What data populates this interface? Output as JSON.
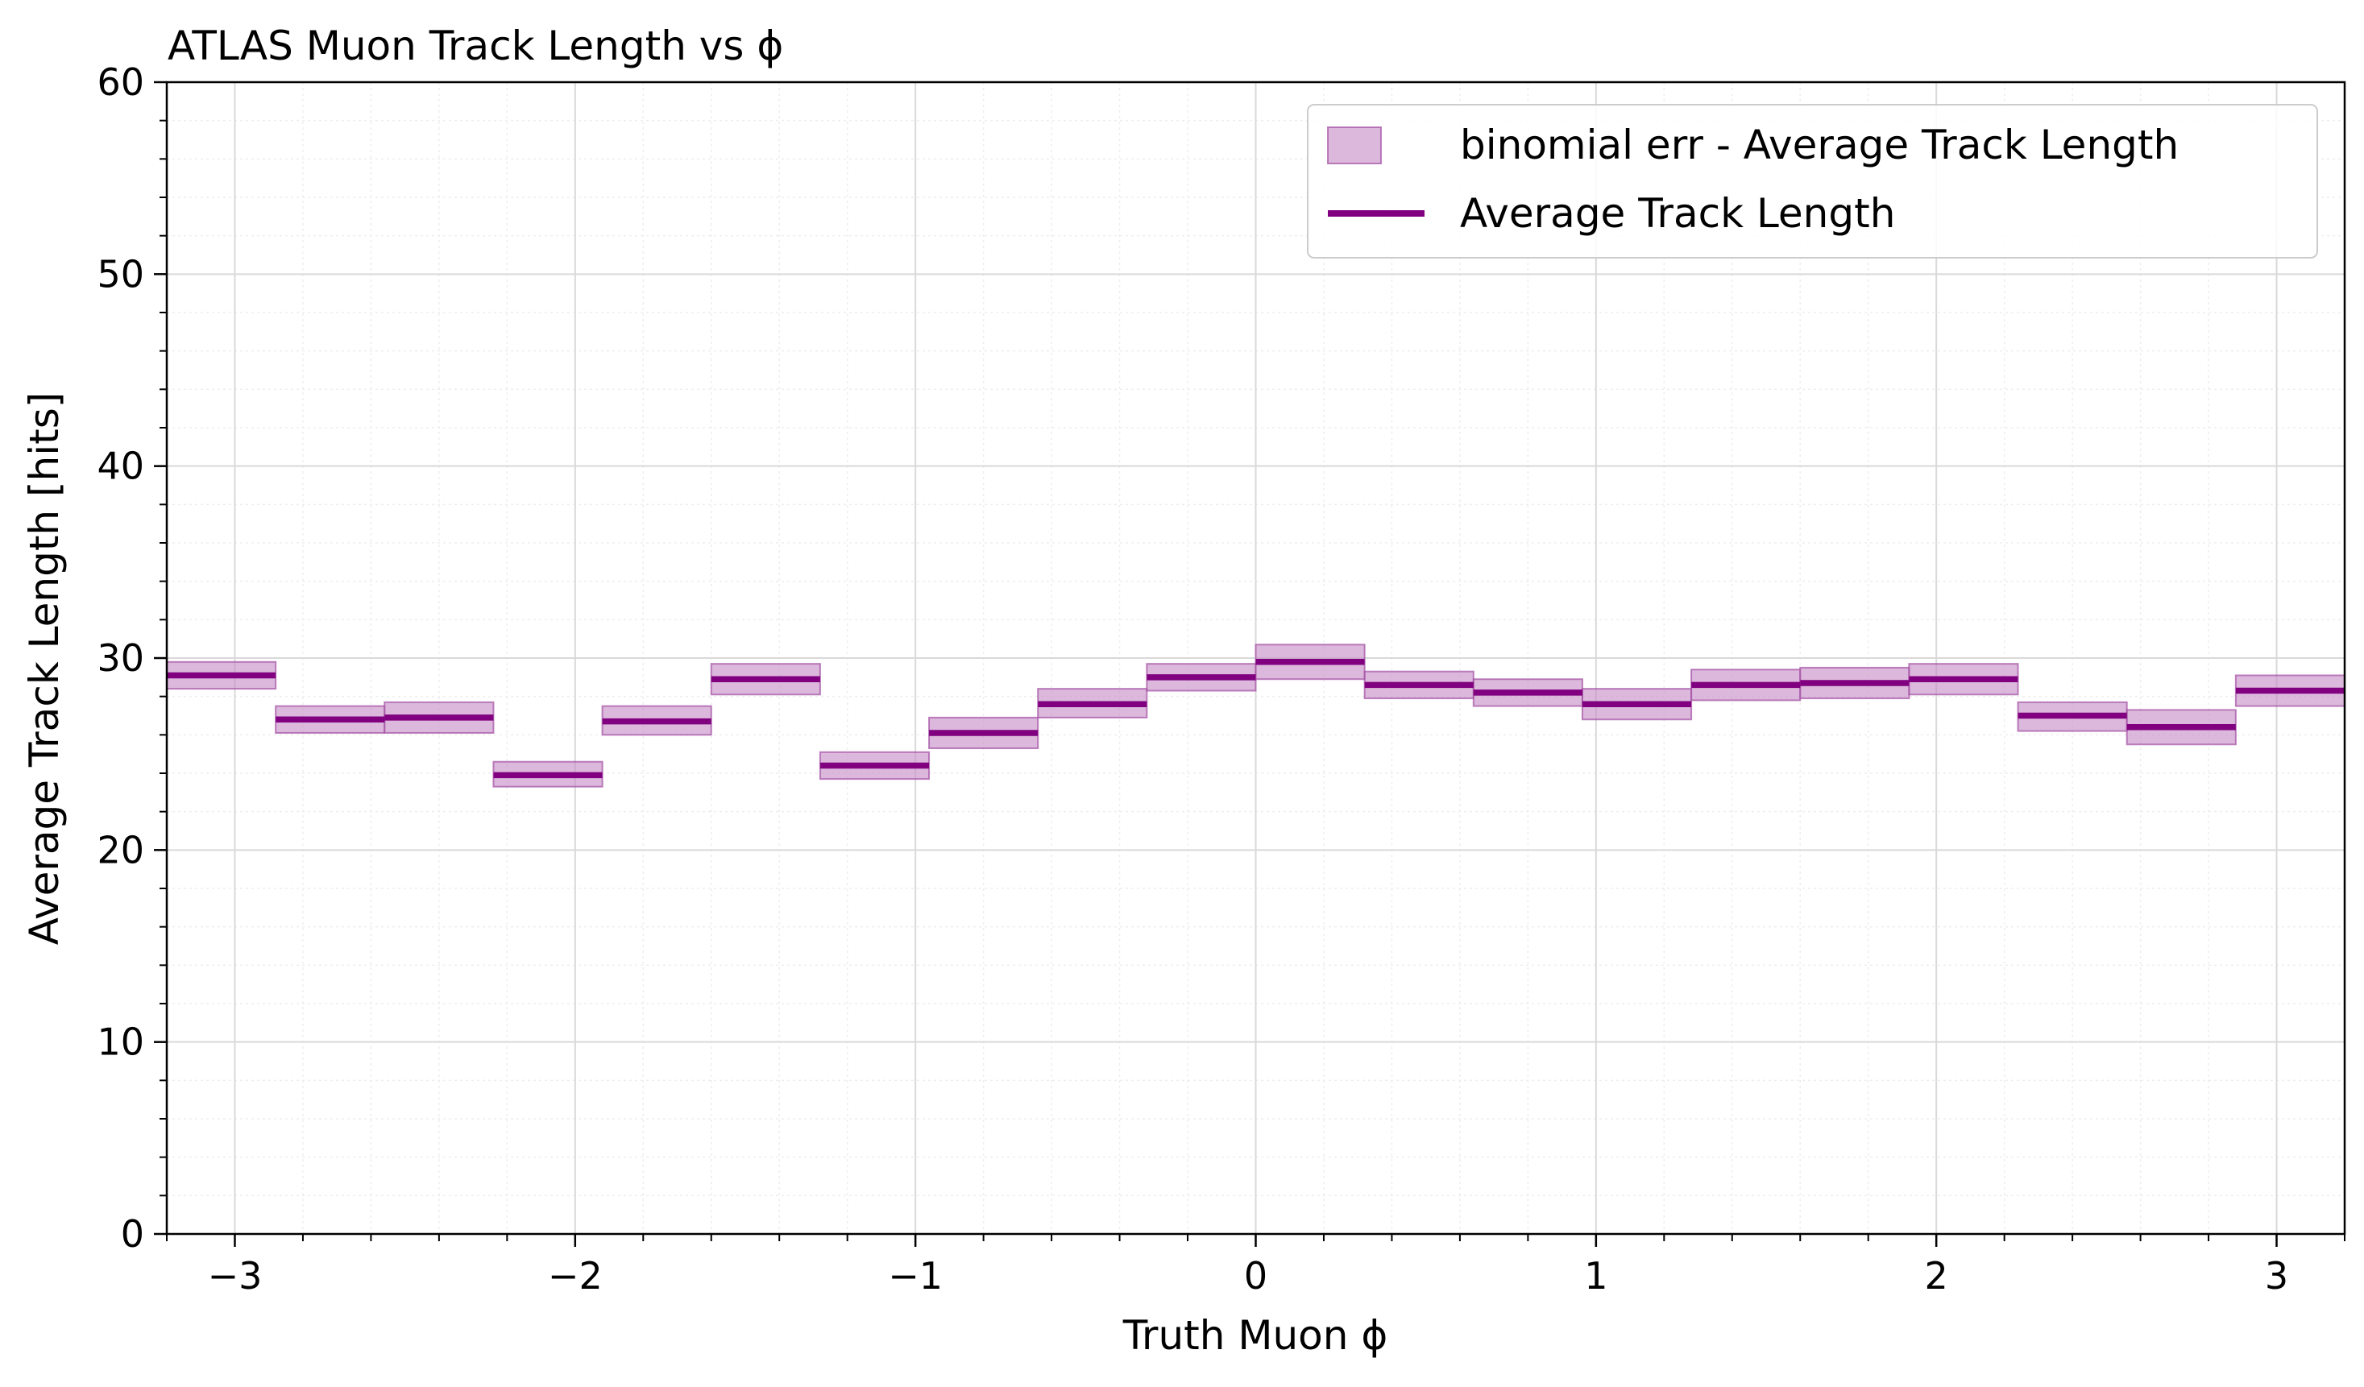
{
  "chart_data": {
    "type": "step",
    "title": "ATLAS Muon Track Length vs ϕ",
    "xlabel": "Truth Muon ϕ",
    "ylabel": "Average Track Length [hits]",
    "xlim": [
      -3.2,
      3.2
    ],
    "ylim": [
      0,
      60
    ],
    "x_ticks": [
      -3,
      -2,
      -1,
      0,
      1,
      2,
      3
    ],
    "x_tick_labels": [
      "−3",
      "−2",
      "−1",
      "0",
      "1",
      "2",
      "3"
    ],
    "y_ticks": [
      0,
      10,
      20,
      30,
      40,
      50,
      60
    ],
    "y_tick_labels": [
      "0",
      "10",
      "20",
      "30",
      "40",
      "50",
      "60"
    ],
    "grid": true,
    "minor_grid": true,
    "legend_position": "top-right",
    "bin_edges": [
      -3.2,
      -2.88,
      -2.56,
      -2.24,
      -1.92,
      -1.6,
      -1.28,
      -0.96,
      -0.64,
      -0.32,
      0.0,
      0.32,
      0.64,
      0.96,
      1.28,
      1.6,
      1.92,
      2.24,
      2.56,
      2.88,
      3.2
    ],
    "series": [
      {
        "name": "Average Track Length",
        "color": "#800080",
        "values": [
          29.1,
          26.8,
          26.9,
          23.9,
          26.7,
          28.9,
          24.4,
          26.1,
          27.6,
          29.0,
          29.8,
          28.6,
          28.2,
          27.6,
          28.6,
          28.7,
          28.9,
          27.0,
          26.4,
          28.3
        ]
      },
      {
        "name": "binomial err - Average Track Length",
        "color": "#c58ac5",
        "lower": [
          28.4,
          26.1,
          26.1,
          23.3,
          26.0,
          28.1,
          23.7,
          25.3,
          26.9,
          28.3,
          28.9,
          27.9,
          27.5,
          26.8,
          27.8,
          27.9,
          28.1,
          26.2,
          25.5,
          27.5
        ],
        "upper": [
          29.8,
          27.5,
          27.7,
          24.6,
          27.5,
          29.7,
          25.1,
          26.9,
          28.4,
          29.7,
          30.7,
          29.3,
          28.9,
          28.4,
          29.4,
          29.5,
          29.7,
          27.7,
          27.3,
          29.1
        ]
      }
    ]
  }
}
